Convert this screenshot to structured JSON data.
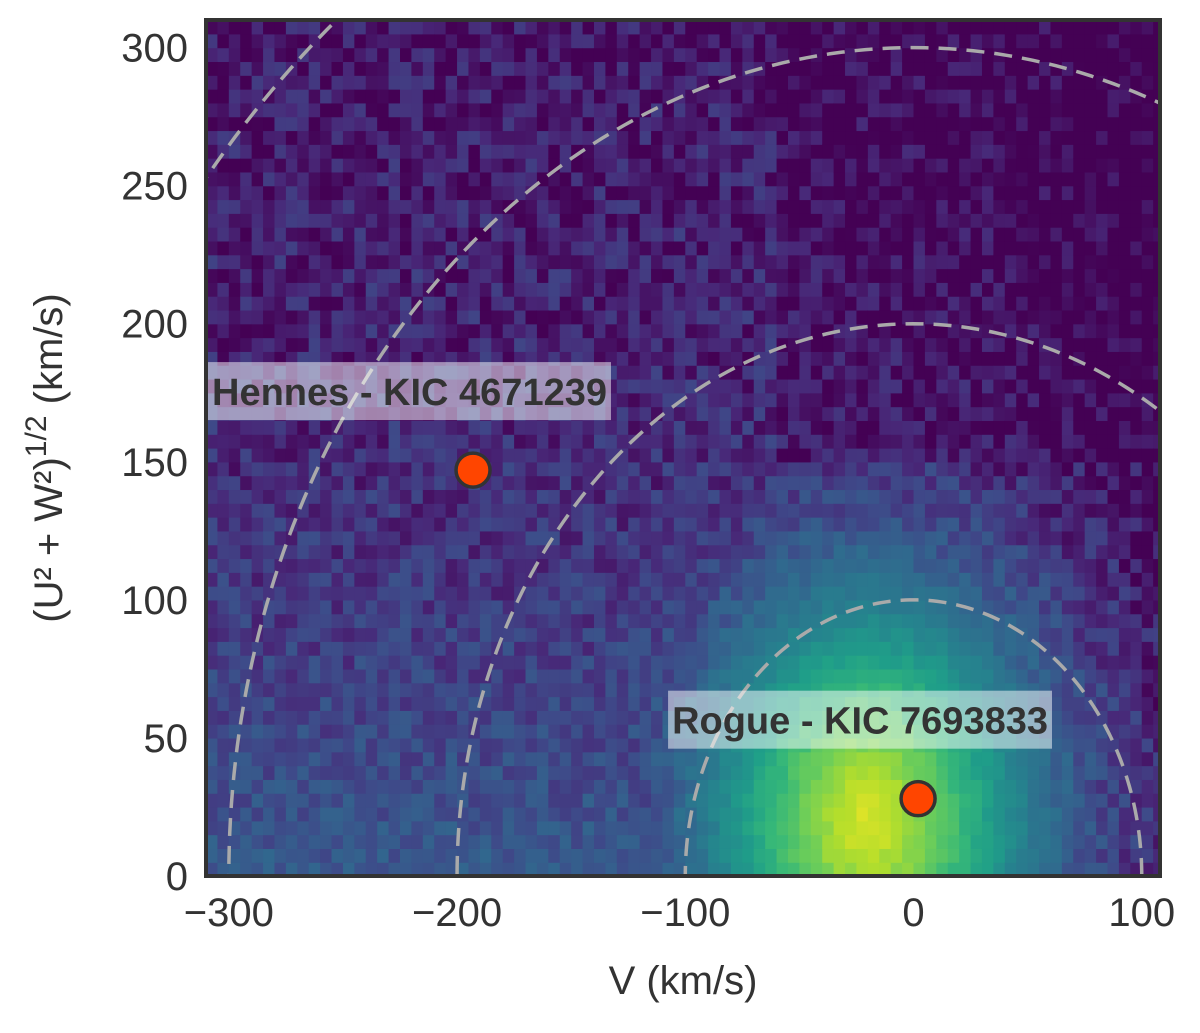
{
  "chart_data": {
    "type": "heatmap",
    "title": "",
    "xlabel": "V (km/s)",
    "ylabel": {
      "text": "(U² + W²)",
      "superscript": "1/2",
      "unit": " (km/s)"
    },
    "xlim": [
      -310,
      108
    ],
    "ylim": [
      0,
      310
    ],
    "xticks": [
      -300,
      -200,
      -100,
      0,
      100
    ],
    "xtick_labels": [
      "−300",
      "−200",
      "−100",
      "0",
      "100"
    ],
    "yticks": [
      0,
      50,
      100,
      150,
      200,
      250,
      300
    ],
    "ytick_labels": [
      "0",
      "50",
      "100",
      "150",
      "200",
      "250",
      "300"
    ],
    "colormap": "viridis",
    "density_peak": {
      "v": -20,
      "r": 20
    },
    "reference_curves": {
      "description_shape": "circles centered at V=0",
      "radii": [
        100,
        200,
        300,
        400
      ],
      "style": "dashed",
      "color": "#aaaaaa"
    },
    "points": [
      {
        "name": "Hennes - KIC 4671239",
        "v": -193,
        "r": 147,
        "color": "#ff4500"
      },
      {
        "name": "Rogue - KIC 7693833",
        "v": 2,
        "r": 28,
        "color": "#ff4500"
      }
    ],
    "grid": false,
    "legend": "none"
  }
}
